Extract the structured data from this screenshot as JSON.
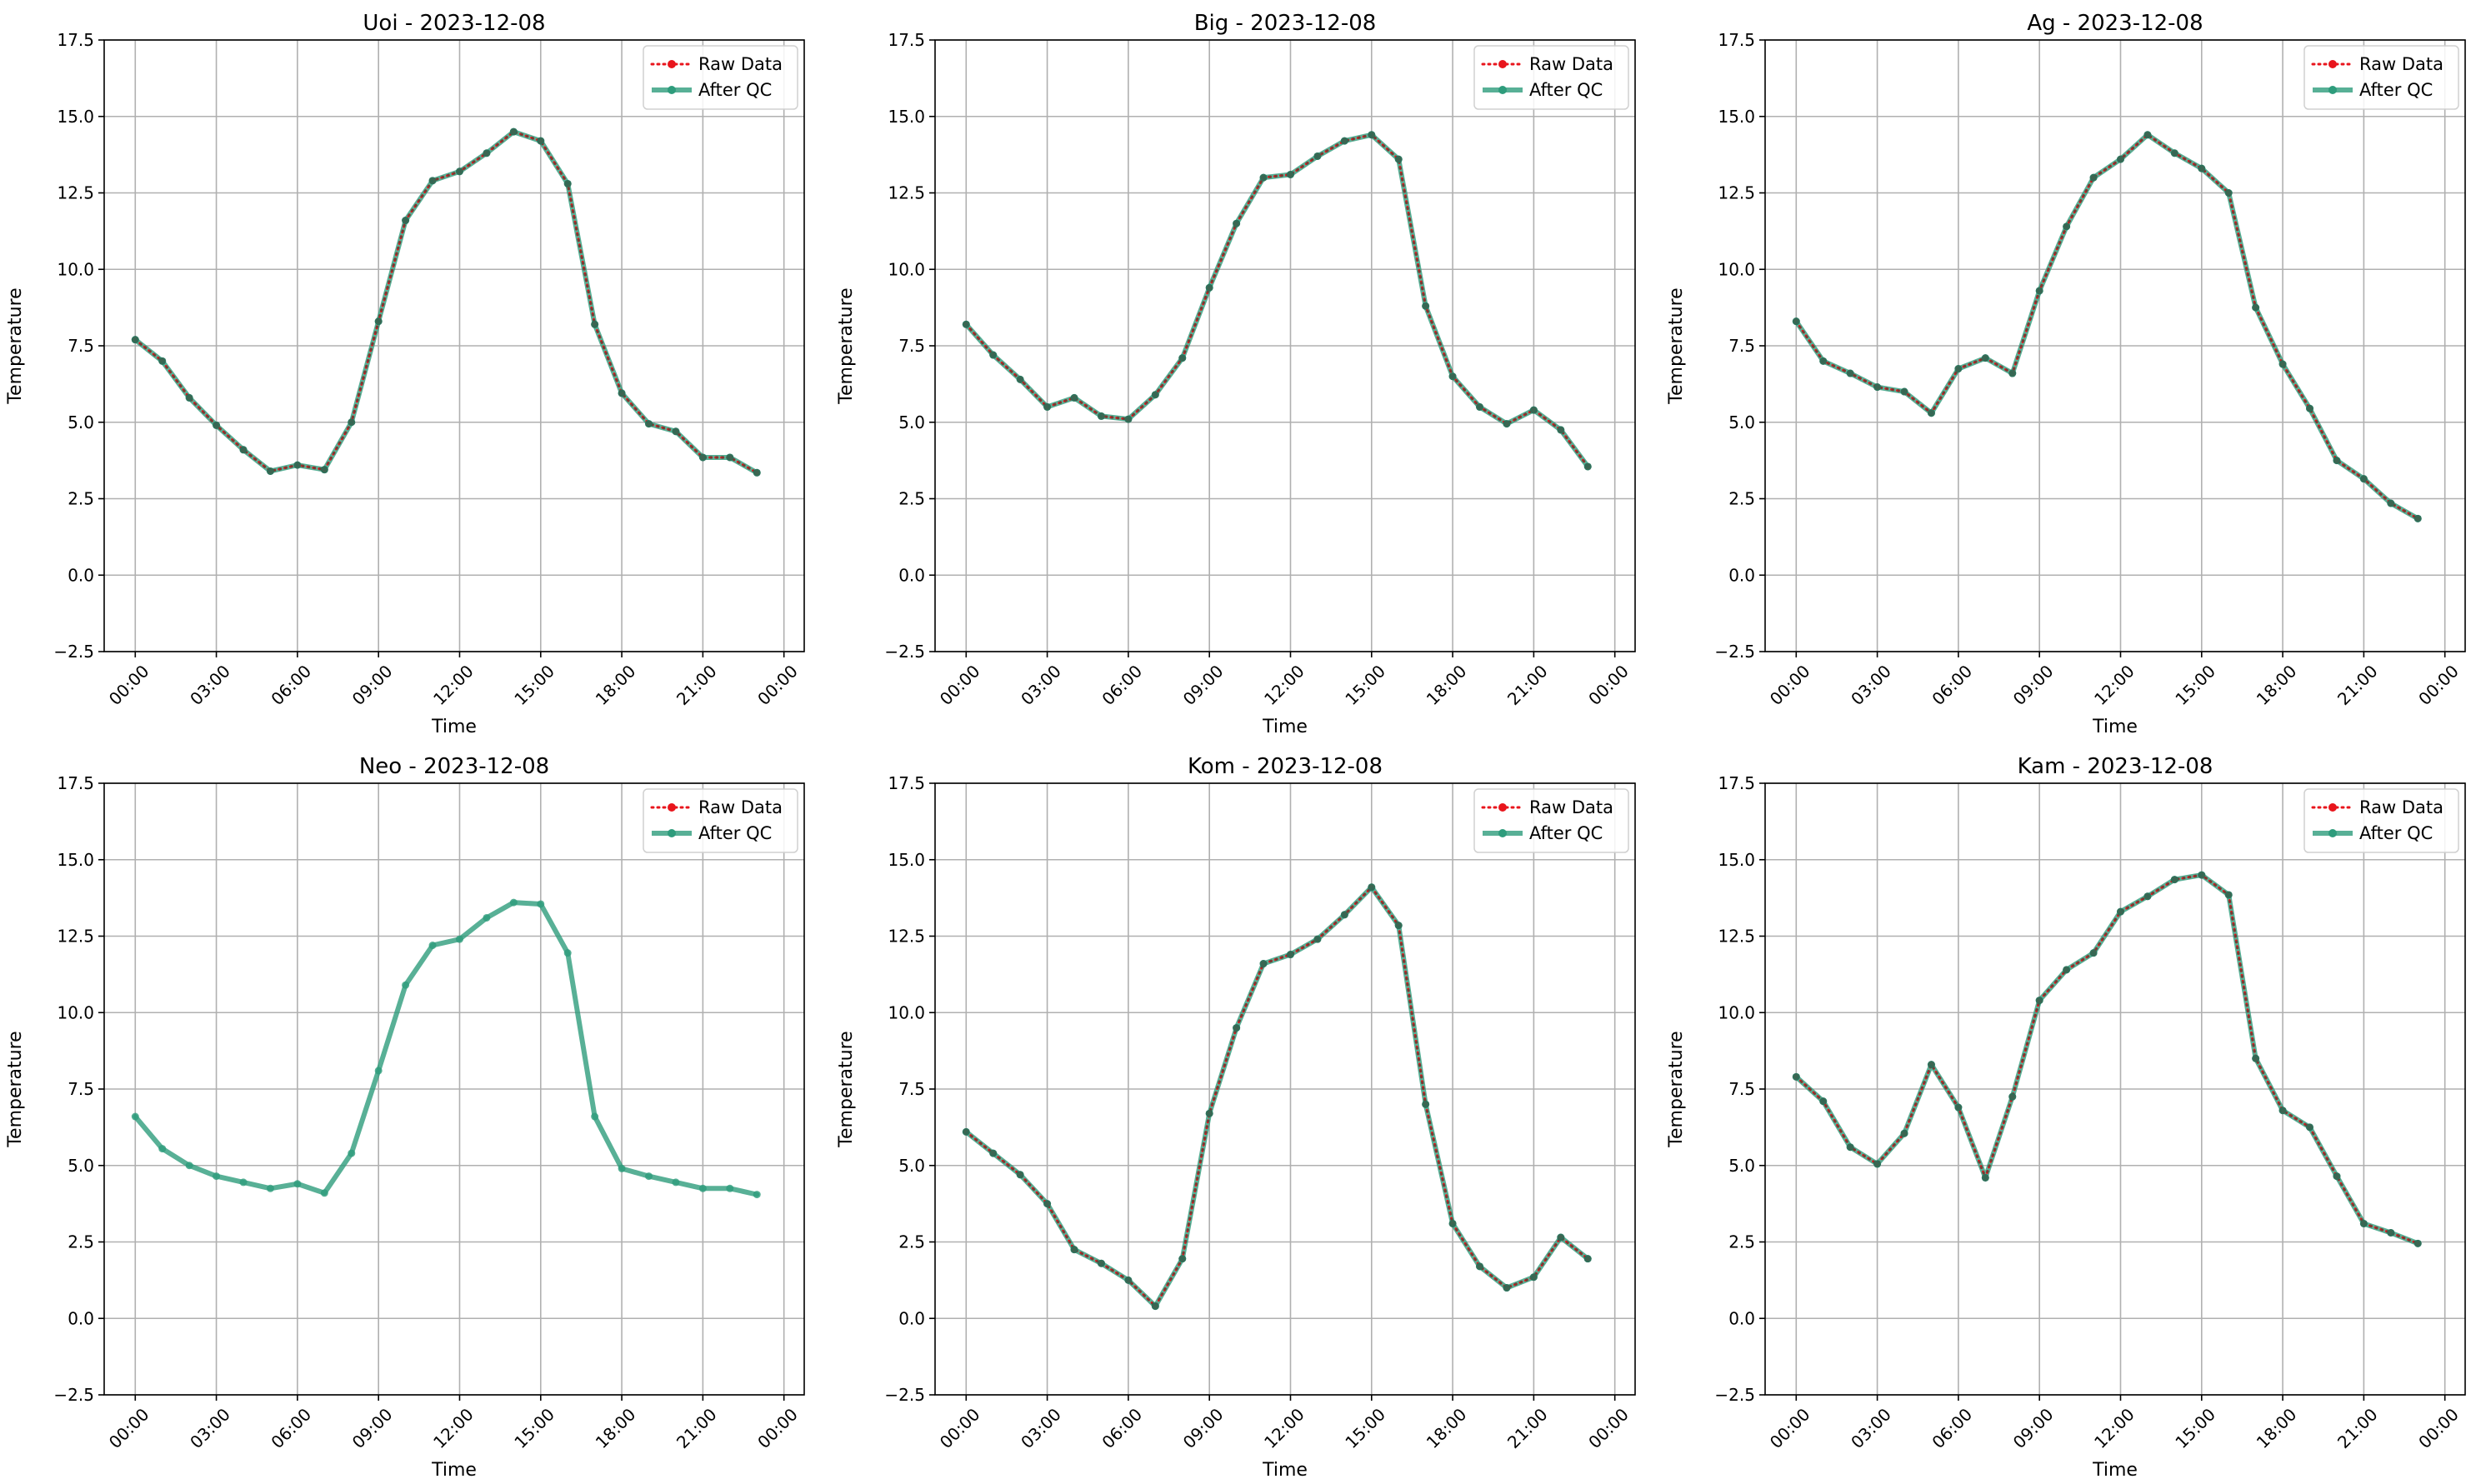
{
  "figure": {
    "date": "2023-12-08",
    "xlabel": "Time",
    "ylabel": "Temperature",
    "legend": [
      "Raw Data",
      "After QC"
    ],
    "colors": {
      "raw": "#e8151c",
      "qc": "#2e9c7c",
      "axis": "#000000",
      "grid": "#b0b0b0"
    }
  },
  "chart_data": [
    {
      "type": "line",
      "title": "Uoi - 2023-12-08",
      "xlabel": "Time",
      "ylabel": "Temperature",
      "x": [
        "00:00",
        "01:00",
        "02:00",
        "03:00",
        "04:00",
        "05:00",
        "06:00",
        "07:00",
        "08:00",
        "09:00",
        "10:00",
        "11:00",
        "12:00",
        "13:00",
        "14:00",
        "15:00",
        "16:00",
        "17:00",
        "18:00",
        "19:00",
        "20:00",
        "21:00",
        "22:00",
        "23:00"
      ],
      "series": [
        {
          "name": "Raw Data",
          "values": [
            7.7,
            7.0,
            5.8,
            4.9,
            4.1,
            3.4,
            3.6,
            3.45,
            5.0,
            8.3,
            11.6,
            12.9,
            13.2,
            13.8,
            14.5,
            14.2,
            12.8,
            8.2,
            5.95,
            4.95,
            4.7,
            3.85,
            3.85,
            3.35
          ]
        },
        {
          "name": "After QC",
          "values": [
            7.7,
            7.0,
            5.8,
            4.9,
            4.1,
            3.4,
            3.6,
            3.45,
            5.0,
            8.3,
            11.6,
            12.9,
            13.2,
            13.8,
            14.5,
            14.2,
            12.8,
            8.2,
            5.95,
            4.95,
            4.7,
            3.85,
            3.85,
            3.35
          ]
        }
      ],
      "xticks": [
        "00:00",
        "03:00",
        "06:00",
        "09:00",
        "12:00",
        "15:00",
        "18:00",
        "21:00",
        "00:00"
      ],
      "yticks": [
        "−2.5",
        "0.0",
        "2.5",
        "5.0",
        "7.5",
        "10.0",
        "12.5",
        "15.0",
        "17.5"
      ],
      "ylim": [
        -2.5,
        17.5
      ],
      "grid": true,
      "legend_position": "top-right"
    },
    {
      "type": "line",
      "title": "Big - 2023-12-08",
      "xlabel": "Time",
      "ylabel": "Temperature",
      "x": [
        "00:00",
        "01:00",
        "02:00",
        "03:00",
        "04:00",
        "05:00",
        "06:00",
        "07:00",
        "08:00",
        "09:00",
        "10:00",
        "11:00",
        "12:00",
        "13:00",
        "14:00",
        "15:00",
        "16:00",
        "17:00",
        "18:00",
        "19:00",
        "20:00",
        "21:00",
        "22:00",
        "23:00"
      ],
      "series": [
        {
          "name": "Raw Data",
          "values": [
            8.2,
            7.2,
            6.4,
            5.5,
            5.8,
            5.2,
            5.1,
            5.9,
            7.1,
            9.4,
            11.5,
            13.0,
            13.1,
            13.7,
            14.2,
            14.4,
            13.6,
            8.8,
            6.5,
            5.5,
            4.95,
            5.4,
            4.75,
            3.55
          ]
        },
        {
          "name": "After QC",
          "values": [
            8.2,
            7.2,
            6.4,
            5.5,
            5.8,
            5.2,
            5.1,
            5.9,
            7.1,
            9.4,
            11.5,
            13.0,
            13.1,
            13.7,
            14.2,
            14.4,
            13.6,
            8.8,
            6.5,
            5.5,
            4.95,
            5.4,
            4.75,
            3.55
          ]
        }
      ],
      "xticks": [
        "00:00",
        "03:00",
        "06:00",
        "09:00",
        "12:00",
        "15:00",
        "18:00",
        "21:00",
        "00:00"
      ],
      "yticks": [
        "−2.5",
        "0.0",
        "2.5",
        "5.0",
        "7.5",
        "10.0",
        "12.5",
        "15.0",
        "17.5"
      ],
      "ylim": [
        -2.5,
        17.5
      ],
      "grid": true,
      "legend_position": "top-right"
    },
    {
      "type": "line",
      "title": "Ag - 2023-12-08",
      "xlabel": "Time",
      "ylabel": "Temperature",
      "x": [
        "00:00",
        "01:00",
        "02:00",
        "03:00",
        "04:00",
        "05:00",
        "06:00",
        "07:00",
        "08:00",
        "09:00",
        "10:00",
        "11:00",
        "12:00",
        "13:00",
        "14:00",
        "15:00",
        "16:00",
        "17:00",
        "18:00",
        "19:00",
        "20:00",
        "21:00",
        "22:00",
        "23:00"
      ],
      "series": [
        {
          "name": "Raw Data",
          "values": [
            8.3,
            7.0,
            6.6,
            6.15,
            6.0,
            5.3,
            6.75,
            7.1,
            6.6,
            9.3,
            11.4,
            13.0,
            13.6,
            14.4,
            13.8,
            13.3,
            12.5,
            8.75,
            6.9,
            5.45,
            3.75,
            3.15,
            2.35,
            1.85
          ]
        },
        {
          "name": "After QC",
          "values": [
            8.3,
            7.0,
            6.6,
            6.15,
            6.0,
            5.3,
            6.75,
            7.1,
            6.6,
            9.3,
            11.4,
            13.0,
            13.6,
            14.4,
            13.8,
            13.3,
            12.5,
            8.75,
            6.9,
            5.45,
            3.75,
            3.15,
            2.35,
            1.85
          ]
        }
      ],
      "xticks": [
        "00:00",
        "03:00",
        "06:00",
        "09:00",
        "12:00",
        "15:00",
        "18:00",
        "21:00",
        "00:00"
      ],
      "yticks": [
        "−2.5",
        "0.0",
        "2.5",
        "5.0",
        "7.5",
        "10.0",
        "12.5",
        "15.0",
        "17.5"
      ],
      "ylim": [
        -2.5,
        17.5
      ],
      "grid": true,
      "legend_position": "top-right"
    },
    {
      "type": "line",
      "title": "Neo - 2023-12-08",
      "xlabel": "Time",
      "ylabel": "Temperature",
      "x": [
        "00:00",
        "01:00",
        "02:00",
        "03:00",
        "04:00",
        "05:00",
        "06:00",
        "07:00",
        "08:00",
        "09:00",
        "10:00",
        "11:00",
        "12:00",
        "13:00",
        "14:00",
        "15:00",
        "16:00",
        "17:00",
        "18:00",
        "19:00",
        "20:00",
        "21:00",
        "22:00",
        "23:00"
      ],
      "series": [
        {
          "name": "After QC",
          "values": [
            6.6,
            5.55,
            5.0,
            4.65,
            4.45,
            4.25,
            4.4,
            4.1,
            5.4,
            8.1,
            10.9,
            12.2,
            12.4,
            13.1,
            13.6,
            13.55,
            11.95,
            6.6,
            4.9,
            4.65,
            4.45,
            4.25,
            4.25,
            4.05
          ]
        }
      ],
      "xticks": [
        "00:00",
        "03:00",
        "06:00",
        "09:00",
        "12:00",
        "15:00",
        "18:00",
        "21:00",
        "00:00"
      ],
      "yticks": [
        "−2.5",
        "0.0",
        "2.5",
        "5.0",
        "7.5",
        "10.0",
        "12.5",
        "15.0",
        "17.5"
      ],
      "ylim": [
        -2.5,
        17.5
      ],
      "grid": true,
      "legend_position": "top-right"
    },
    {
      "type": "line",
      "title": "Kom - 2023-12-08",
      "xlabel": "Time",
      "ylabel": "Temperature",
      "x": [
        "00:00",
        "01:00",
        "02:00",
        "03:00",
        "04:00",
        "05:00",
        "06:00",
        "07:00",
        "08:00",
        "09:00",
        "10:00",
        "11:00",
        "12:00",
        "13:00",
        "14:00",
        "15:00",
        "16:00",
        "17:00",
        "18:00",
        "19:00",
        "20:00",
        "21:00",
        "22:00",
        "23:00"
      ],
      "series": [
        {
          "name": "Raw Data",
          "values": [
            6.1,
            5.4,
            4.7,
            3.75,
            2.25,
            1.8,
            1.25,
            0.4,
            1.95,
            6.7,
            9.5,
            11.6,
            11.9,
            12.4,
            13.2,
            14.1,
            12.85,
            7.0,
            3.1,
            1.7,
            1.0,
            1.35,
            2.65,
            1.95
          ]
        },
        {
          "name": "After QC",
          "values": [
            6.1,
            5.4,
            4.7,
            3.75,
            2.25,
            1.8,
            1.25,
            0.4,
            1.95,
            6.7,
            9.5,
            11.6,
            11.9,
            12.4,
            13.2,
            14.1,
            12.85,
            7.0,
            3.1,
            1.7,
            1.0,
            1.35,
            2.65,
            1.95
          ]
        }
      ],
      "xticks": [
        "00:00",
        "03:00",
        "06:00",
        "09:00",
        "12:00",
        "15:00",
        "18:00",
        "21:00",
        "00:00"
      ],
      "yticks": [
        "−2.5",
        "0.0",
        "2.5",
        "5.0",
        "7.5",
        "10.0",
        "12.5",
        "15.0",
        "17.5"
      ],
      "ylim": [
        -2.5,
        17.5
      ],
      "grid": true,
      "legend_position": "top-right"
    },
    {
      "type": "line",
      "title": "Kam - 2023-12-08",
      "xlabel": "Time",
      "ylabel": "Temperature",
      "x": [
        "00:00",
        "01:00",
        "02:00",
        "03:00",
        "04:00",
        "05:00",
        "06:00",
        "07:00",
        "08:00",
        "09:00",
        "10:00",
        "11:00",
        "12:00",
        "13:00",
        "14:00",
        "15:00",
        "16:00",
        "17:00",
        "18:00",
        "19:00",
        "20:00",
        "21:00",
        "22:00",
        "23:00"
      ],
      "series": [
        {
          "name": "Raw Data",
          "values": [
            7.9,
            7.1,
            5.6,
            5.05,
            6.05,
            8.3,
            6.9,
            4.6,
            7.25,
            10.4,
            11.4,
            11.95,
            13.3,
            13.8,
            14.35,
            14.5,
            13.85,
            8.5,
            6.8,
            6.25,
            4.65,
            3.1,
            2.8,
            2.45
          ]
        },
        {
          "name": "After QC",
          "values": [
            7.9,
            7.1,
            5.6,
            5.05,
            6.05,
            8.3,
            6.9,
            4.6,
            7.25,
            10.4,
            11.4,
            11.95,
            13.3,
            13.8,
            14.35,
            14.5,
            13.85,
            8.5,
            6.8,
            6.25,
            4.65,
            3.1,
            2.8,
            2.45
          ]
        }
      ],
      "xticks": [
        "00:00",
        "03:00",
        "06:00",
        "09:00",
        "12:00",
        "15:00",
        "18:00",
        "21:00",
        "00:00"
      ],
      "yticks": [
        "−2.5",
        "0.0",
        "2.5",
        "5.0",
        "7.5",
        "10.0",
        "12.5",
        "15.0",
        "17.5"
      ],
      "ylim": [
        -2.5,
        17.5
      ],
      "grid": true,
      "legend_position": "top-right"
    }
  ]
}
